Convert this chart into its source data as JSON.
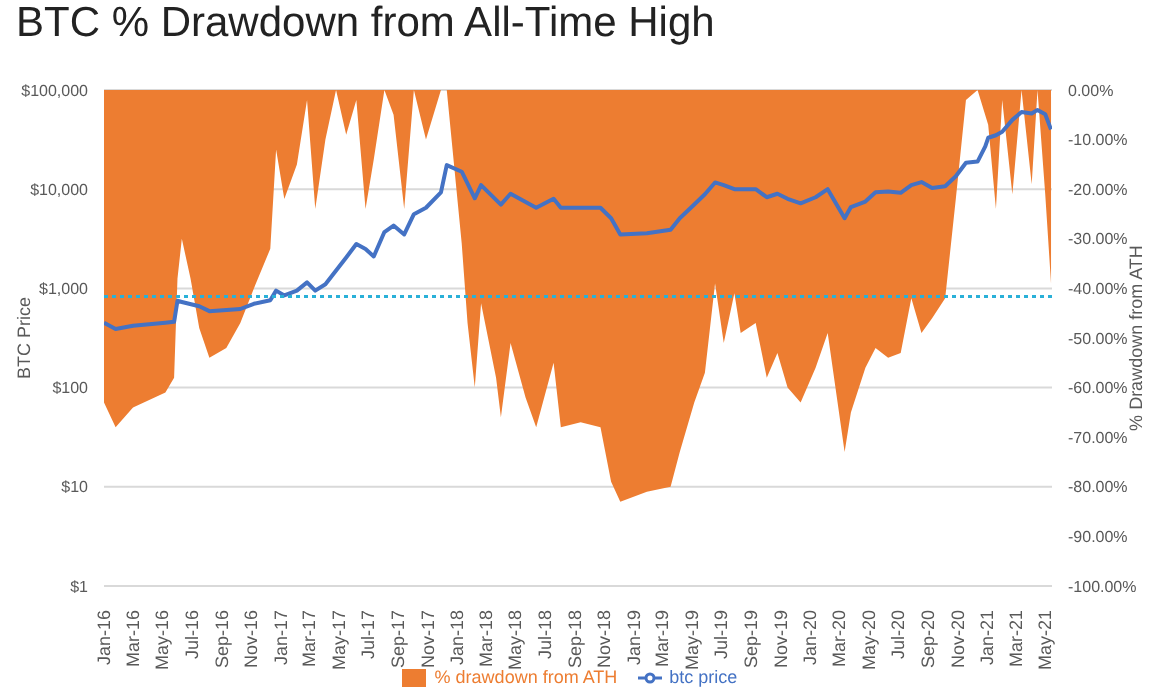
{
  "chart_data": {
    "type": "line",
    "title": "BTC % Drawdown from All-Time High",
    "ylabel": "BTC Price",
    "y2label": "% Drawdown from ATH",
    "xlim": [
      "2016-01-01",
      "2021-05-15"
    ],
    "xticks": [
      {
        "value": "2016-01-01",
        "label": "Jan-16"
      },
      {
        "value": "2016-03-01",
        "label": "Mar-16"
      },
      {
        "value": "2016-05-01",
        "label": "May-16"
      },
      {
        "value": "2016-07-01",
        "label": "Jul-16"
      },
      {
        "value": "2016-09-01",
        "label": "Sep-16"
      },
      {
        "value": "2016-11-01",
        "label": "Nov-16"
      },
      {
        "value": "2017-01-01",
        "label": "Jan-17"
      },
      {
        "value": "2017-03-01",
        "label": "Mar-17"
      },
      {
        "value": "2017-05-01",
        "label": "May-17"
      },
      {
        "value": "2017-07-01",
        "label": "Jul-17"
      },
      {
        "value": "2017-09-01",
        "label": "Sep-17"
      },
      {
        "value": "2017-11-01",
        "label": "Nov-17"
      },
      {
        "value": "2018-01-01",
        "label": "Jan-18"
      },
      {
        "value": "2018-03-01",
        "label": "Mar-18"
      },
      {
        "value": "2018-05-01",
        "label": "May-18"
      },
      {
        "value": "2018-07-01",
        "label": "Jul-18"
      },
      {
        "value": "2018-09-01",
        "label": "Sep-18"
      },
      {
        "value": "2018-11-01",
        "label": "Nov-18"
      },
      {
        "value": "2019-01-01",
        "label": "Jan-19"
      },
      {
        "value": "2019-03-01",
        "label": "Mar-19"
      },
      {
        "value": "2019-05-01",
        "label": "May-19"
      },
      {
        "value": "2019-07-01",
        "label": "Jul-19"
      },
      {
        "value": "2019-09-01",
        "label": "Sep-19"
      },
      {
        "value": "2019-11-01",
        "label": "Nov-19"
      },
      {
        "value": "2020-01-01",
        "label": "Jan-20"
      },
      {
        "value": "2020-03-01",
        "label": "Mar-20"
      },
      {
        "value": "2020-05-01",
        "label": "May-20"
      },
      {
        "value": "2020-07-01",
        "label": "Jul-20"
      },
      {
        "value": "2020-09-01",
        "label": "Sep-20"
      },
      {
        "value": "2020-11-01",
        "label": "Nov-20"
      },
      {
        "value": "2021-01-01",
        "label": "Jan-21"
      },
      {
        "value": "2021-03-01",
        "label": "Mar-21"
      },
      {
        "value": "2021-05-01",
        "label": "May-21"
      }
    ],
    "log": "y",
    "ylim": [
      1,
      100000
    ],
    "yticks": [
      {
        "value": 1,
        "label": "$1"
      },
      {
        "value": 10,
        "label": "$10"
      },
      {
        "value": 100,
        "label": "$100"
      },
      {
        "value": 1000,
        "label": "$1,000"
      },
      {
        "value": 10000,
        "label": "$10,000"
      },
      {
        "value": 100000,
        "label": "$100,000"
      }
    ],
    "y2lim": [
      -100,
      0
    ],
    "y2ticks": [
      {
        "value": 0,
        "label": "0.00%"
      },
      {
        "value": -10,
        "label": "-10.00%"
      },
      {
        "value": -20,
        "label": "-20.00%"
      },
      {
        "value": -30,
        "label": "-30.00%"
      },
      {
        "value": -40,
        "label": "-40.00%"
      },
      {
        "value": -50,
        "label": "-50.00%"
      },
      {
        "value": -60,
        "label": "-60.00%"
      },
      {
        "value": -70,
        "label": "-70.00%"
      },
      {
        "value": -80,
        "label": "-80.00%"
      },
      {
        "value": -90,
        "label": "-90.00%"
      },
      {
        "value": -100,
        "label": "-100.00%"
      }
    ],
    "grid": "y",
    "legend": "bottom",
    "marker": "none",
    "ref_lines": [
      {
        "axis": "y",
        "value": 830,
        "color": "#2ab0d8",
        "line_style": "dotted"
      }
    ],
    "series": [
      {
        "name": "% drawdown from ATH",
        "type": "area",
        "axis": "y2",
        "color": "#ed7d31",
        "x": [
          "2016-01-01",
          "2016-01-25",
          "2016-03-01",
          "2016-05-07",
          "2016-05-25",
          "2016-06-01",
          "2016-06-10",
          "2016-06-28",
          "2016-07-16",
          "2016-08-06",
          "2016-09-10",
          "2016-10-09",
          "2016-11-06",
          "2016-12-10",
          "2016-12-22",
          "2017-01-08",
          "2017-02-03",
          "2017-02-24",
          "2017-03-13",
          "2017-04-03",
          "2017-04-25",
          "2017-05-16",
          "2017-06-06",
          "2017-06-25",
          "2017-07-12",
          "2017-08-03",
          "2017-08-22",
          "2017-09-13",
          "2017-10-03",
          "2017-10-28",
          "2017-11-28",
          "2017-12-10",
          "2018-01-10",
          "2018-01-22",
          "2018-02-06",
          "2018-02-19",
          "2018-03-22",
          "2018-04-01",
          "2018-04-21",
          "2018-05-22",
          "2018-06-13",
          "2018-07-19",
          "2018-08-03",
          "2018-09-13",
          "2018-10-24",
          "2018-11-15",
          "2018-12-04",
          "2019-01-28",
          "2019-03-18",
          "2019-04-06",
          "2019-05-06",
          "2019-05-28",
          "2019-06-18",
          "2019-07-06",
          "2019-07-28",
          "2019-08-10",
          "2019-09-10",
          "2019-10-03",
          "2019-10-25",
          "2019-11-15",
          "2019-12-12",
          "2020-01-12",
          "2020-02-06",
          "2020-03-12",
          "2020-03-25",
          "2020-04-24",
          "2020-05-15",
          "2020-06-10",
          "2020-07-06",
          "2020-07-28",
          "2020-08-18",
          "2020-09-09",
          "2020-10-06",
          "2020-10-28",
          "2020-11-18",
          "2020-12-12",
          "2021-01-03",
          "2021-01-19",
          "2021-02-01",
          "2021-02-22",
          "2021-03-13",
          "2021-04-03",
          "2021-04-15",
          "2021-05-01",
          "2021-05-13"
        ],
        "values": [
          -63,
          -68,
          -64,
          -61,
          -58,
          -38,
          -30,
          -38,
          -48,
          -54,
          -52,
          -47,
          -40,
          -32,
          -12,
          -22,
          -15,
          -2,
          -24,
          -10,
          0,
          -9,
          -2,
          -24,
          -14,
          0,
          -5,
          -24,
          0,
          -10,
          0,
          0,
          -31,
          -47,
          -60,
          -43,
          -58,
          -66,
          -51,
          -62,
          -68,
          -55,
          -68,
          -67,
          -68,
          -79,
          -83,
          -81,
          -80,
          -73,
          -63,
          -57,
          -39,
          -51,
          -41,
          -49,
          -47,
          -58,
          -53,
          -60,
          -63,
          -56,
          -49,
          -73,
          -65,
          -56,
          -52,
          -54,
          -53,
          -42,
          -49,
          -46,
          -42,
          -22,
          -2,
          0,
          -7,
          -24,
          -2,
          -21,
          0,
          -19,
          0,
          -21,
          -39
        ]
      },
      {
        "name": "btc price",
        "color": "#4472c4",
        "x": [
          "2016-01-01",
          "2016-01-25",
          "2016-03-01",
          "2016-05-07",
          "2016-05-25",
          "2016-06-01",
          "2016-06-10",
          "2016-07-16",
          "2016-08-06",
          "2016-10-09",
          "2016-11-06",
          "2016-12-10",
          "2016-12-22",
          "2017-01-08",
          "2017-02-03",
          "2017-02-24",
          "2017-03-13",
          "2017-04-03",
          "2017-05-16",
          "2017-06-06",
          "2017-06-25",
          "2017-07-12",
          "2017-08-03",
          "2017-08-22",
          "2017-09-13",
          "2017-10-03",
          "2017-10-28",
          "2017-11-28",
          "2017-12-10",
          "2018-01-10",
          "2018-02-06",
          "2018-02-19",
          "2018-04-01",
          "2018-04-21",
          "2018-06-13",
          "2018-07-19",
          "2018-08-03",
          "2018-10-24",
          "2018-11-15",
          "2018-12-04",
          "2019-01-28",
          "2019-03-18",
          "2019-04-06",
          "2019-05-06",
          "2019-05-28",
          "2019-06-18",
          "2019-07-06",
          "2019-07-28",
          "2019-09-10",
          "2019-10-03",
          "2019-10-25",
          "2019-11-15",
          "2019-12-12",
          "2020-01-12",
          "2020-02-06",
          "2020-03-12",
          "2020-03-25",
          "2020-04-24",
          "2020-05-15",
          "2020-06-10",
          "2020-07-06",
          "2020-07-28",
          "2020-08-18",
          "2020-09-09",
          "2020-10-06",
          "2020-10-28",
          "2020-11-18",
          "2020-12-12",
          "2020-12-28",
          "2021-01-03",
          "2021-01-19",
          "2021-02-01",
          "2021-02-22",
          "2021-03-13",
          "2021-04-03",
          "2021-04-15",
          "2021-05-01",
          "2021-05-13"
        ],
        "values": [
          450,
          390,
          420,
          450,
          460,
          750,
          730,
          660,
          590,
          620,
          700,
          760,
          950,
          850,
          950,
          1150,
          950,
          1100,
          2050,
          2800,
          2500,
          2100,
          3700,
          4300,
          3500,
          5600,
          6500,
          9300,
          17500,
          15000,
          8100,
          11000,
          7000,
          9000,
          6500,
          8000,
          6500,
          6500,
          5100,
          3500,
          3600,
          3900,
          5100,
          7000,
          8900,
          11700,
          11000,
          10000,
          10000,
          8300,
          9000,
          8000,
          7200,
          8300,
          10000,
          5100,
          6600,
          7500,
          9300,
          9500,
          9200,
          11000,
          11800,
          10300,
          10700,
          13500,
          18500,
          19000,
          27000,
          33000,
          35000,
          38000,
          50000,
          60000,
          58000,
          63000,
          57000,
          40000
        ]
      }
    ]
  }
}
